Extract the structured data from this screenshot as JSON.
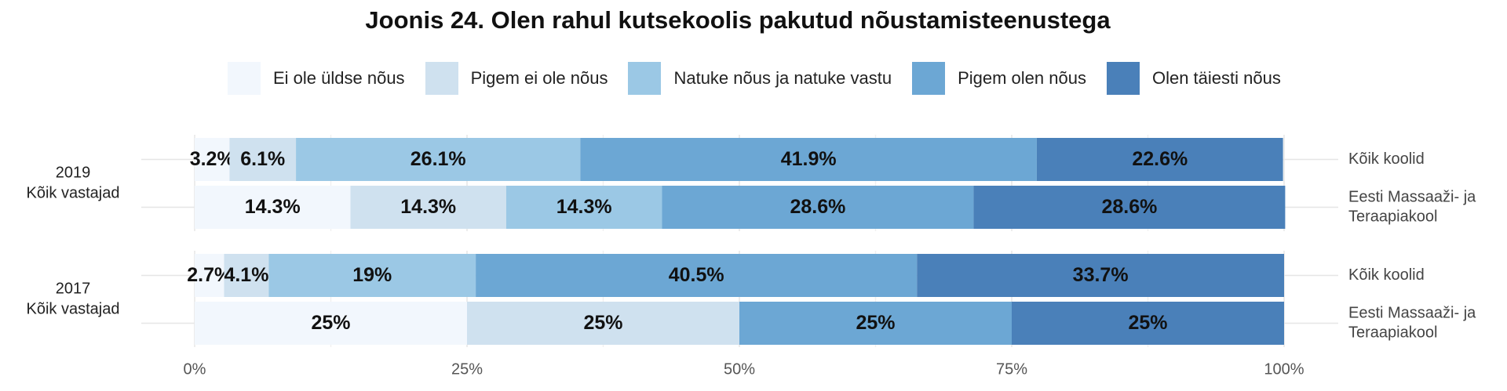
{
  "chart_data": {
    "type": "bar",
    "orientation": "horizontal",
    "stacked": true,
    "percent": true,
    "title": "Joonis 24. Olen rahul kutsekoolis pakutud nõustamisteenustega",
    "legend_position": "top",
    "grid": true,
    "xlim": [
      0,
      100
    ],
    "x_ticks": [
      "0%",
      "25%",
      "50%",
      "75%",
      "100%"
    ],
    "legend": [
      {
        "name": "Ei ole üldse nõus",
        "color": "#f2f7fd"
      },
      {
        "name": "Pigem ei ole nõus",
        "color": "#cfe1ef"
      },
      {
        "name": "Natuke nõus ja natuke vastu",
        "color": "#9bc8e5"
      },
      {
        "name": "Pigem olen nõus",
        "color": "#6ca7d4"
      },
      {
        "name": "Olen täiesti nõus",
        "color": "#4a80b9"
      }
    ],
    "groups": [
      {
        "label_lines": [
          "2019",
          "Kõik vastajad"
        ],
        "bars": [
          {
            "label_lines": [
              "Kõik koolid"
            ],
            "values": [
              3.2,
              6.1,
              26.1,
              41.9,
              22.6
            ],
            "labels": [
              "3.2%",
              "6.1%",
              "26.1%",
              "41.9%",
              "22.6%"
            ]
          },
          {
            "label_lines": [
              "Eesti Massaaži- ja",
              "Teraapiakool"
            ],
            "values": [
              14.3,
              14.3,
              14.3,
              28.6,
              28.6
            ],
            "labels": [
              "14.3%",
              "14.3%",
              "14.3%",
              "28.6%",
              "28.6%"
            ]
          }
        ]
      },
      {
        "label_lines": [
          "2017",
          "Kõik vastajad"
        ],
        "bars": [
          {
            "label_lines": [
              "Kõik koolid"
            ],
            "values": [
              2.7,
              4.1,
              19,
              40.5,
              33.7
            ],
            "labels": [
              "2.7%",
              "4.1%",
              "19%",
              "40.5%",
              "33.7%"
            ]
          },
          {
            "label_lines": [
              "Eesti Massaaži- ja",
              "Teraapiakool"
            ],
            "values": [
              25,
              25,
              0,
              25,
              25
            ],
            "labels": [
              "25%",
              "25%",
              "",
              "25%",
              "25%"
            ]
          }
        ]
      }
    ]
  }
}
